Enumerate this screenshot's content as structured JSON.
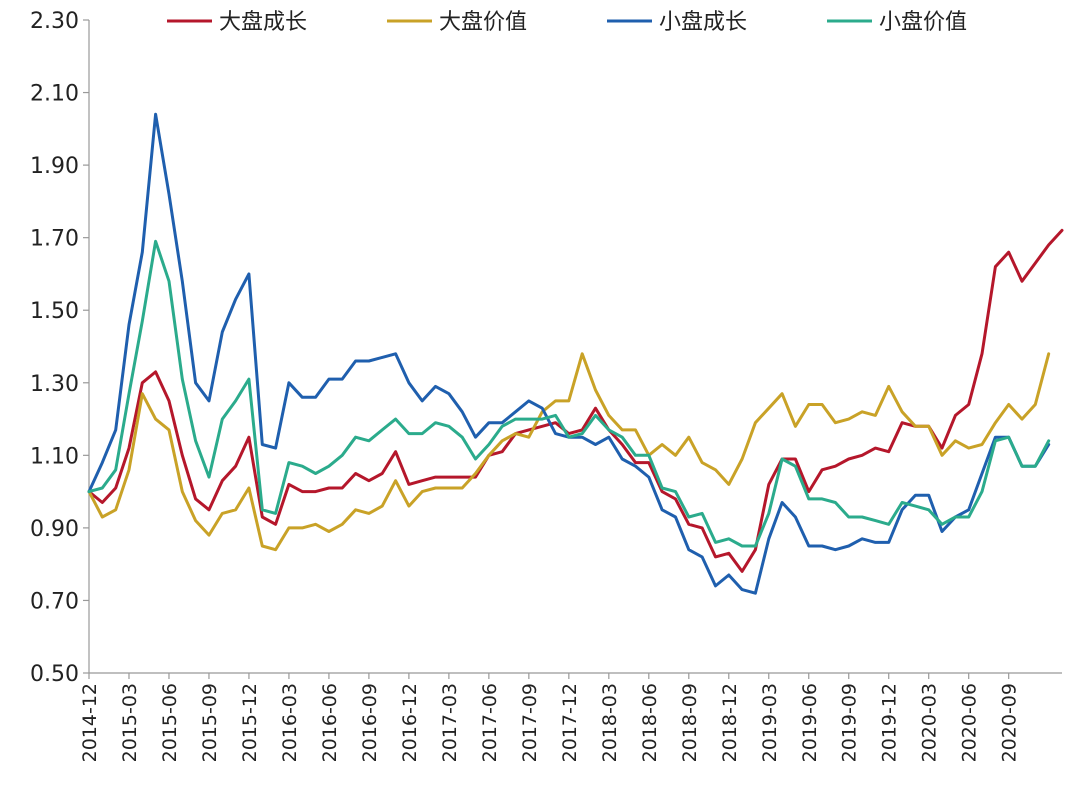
{
  "chart_data": {
    "type": "line",
    "title": "",
    "xlabel": "",
    "ylabel": "",
    "ylim": [
      0.5,
      2.3
    ],
    "y_ticks": [
      "0.50",
      "0.70",
      "0.90",
      "1.10",
      "1.30",
      "1.50",
      "1.70",
      "1.90",
      "2.10",
      "2.30"
    ],
    "x_tick_labels": [
      "2014-12",
      "2015-03",
      "2015-06",
      "2015-09",
      "2015-12",
      "2016-03",
      "2016-06",
      "2016-09",
      "2016-12",
      "2017-03",
      "2017-06",
      "2017-09",
      "2017-12",
      "2018-03",
      "2018-06",
      "2018-09",
      "2018-12",
      "2019-03",
      "2019-06",
      "2019-09",
      "2019-12",
      "2020-03",
      "2020-06",
      "2020-09"
    ],
    "x_start": "2014-12",
    "grid": false,
    "legend_position": "top",
    "series": [
      {
        "name": "大盘成长",
        "color": "#b5172b",
        "values": [
          1.0,
          0.97,
          1.01,
          1.12,
          1.3,
          1.33,
          1.25,
          1.1,
          0.98,
          0.95,
          1.03,
          1.07,
          1.15,
          0.93,
          0.91,
          1.02,
          1.0,
          1.0,
          1.01,
          1.01,
          1.05,
          1.03,
          1.05,
          1.11,
          1.02,
          1.03,
          1.04,
          1.04,
          1.04,
          1.04,
          1.1,
          1.11,
          1.16,
          1.17,
          1.18,
          1.19,
          1.16,
          1.17,
          1.23,
          1.17,
          1.13,
          1.08,
          1.08,
          1.0,
          0.98,
          0.91,
          0.9,
          0.82,
          0.83,
          0.78,
          0.84,
          1.02,
          1.09,
          1.09,
          1.0,
          1.06,
          1.07,
          1.09,
          1.1,
          1.12,
          1.11,
          1.19,
          1.18,
          1.18,
          1.12,
          1.21,
          1.24,
          1.38,
          1.62,
          1.66,
          1.58,
          1.63,
          1.68,
          1.72
        ]
      },
      {
        "name": "大盘价值",
        "color": "#c9a227",
        "values": [
          1.0,
          0.93,
          0.95,
          1.06,
          1.27,
          1.2,
          1.17,
          1.0,
          0.92,
          0.88,
          0.94,
          0.95,
          1.01,
          0.85,
          0.84,
          0.9,
          0.9,
          0.91,
          0.89,
          0.91,
          0.95,
          0.94,
          0.96,
          1.03,
          0.96,
          1.0,
          1.01,
          1.01,
          1.01,
          1.05,
          1.1,
          1.14,
          1.16,
          1.15,
          1.22,
          1.25,
          1.25,
          1.38,
          1.28,
          1.21,
          1.17,
          1.17,
          1.1,
          1.13,
          1.1,
          1.15,
          1.08,
          1.06,
          1.02,
          1.09,
          1.19,
          1.23,
          1.27,
          1.18,
          1.24,
          1.24,
          1.19,
          1.2,
          1.22,
          1.21,
          1.29,
          1.22,
          1.18,
          1.18,
          1.1,
          1.14,
          1.12,
          1.13,
          1.19,
          1.24,
          1.2,
          1.24,
          1.38
        ]
      },
      {
        "name": "小盘成长",
        "color": "#1f5fae",
        "values": [
          1.0,
          1.08,
          1.17,
          1.46,
          1.66,
          2.04,
          1.82,
          1.58,
          1.3,
          1.25,
          1.44,
          1.53,
          1.6,
          1.13,
          1.12,
          1.3,
          1.26,
          1.26,
          1.31,
          1.31,
          1.36,
          1.36,
          1.37,
          1.38,
          1.3,
          1.25,
          1.29,
          1.27,
          1.22,
          1.15,
          1.19,
          1.19,
          1.22,
          1.25,
          1.23,
          1.16,
          1.15,
          1.15,
          1.13,
          1.15,
          1.09,
          1.07,
          1.04,
          0.95,
          0.93,
          0.84,
          0.82,
          0.74,
          0.77,
          0.73,
          0.72,
          0.87,
          0.97,
          0.93,
          0.85,
          0.85,
          0.84,
          0.85,
          0.87,
          0.86,
          0.86,
          0.95,
          0.99,
          0.99,
          0.89,
          0.93,
          0.95,
          1.05,
          1.15,
          1.15,
          1.07,
          1.07,
          1.13
        ]
      },
      {
        "name": "小盘价值",
        "color": "#2bab8c",
        "values": [
          1.0,
          1.01,
          1.06,
          1.27,
          1.47,
          1.69,
          1.58,
          1.31,
          1.14,
          1.04,
          1.2,
          1.25,
          1.31,
          0.95,
          0.94,
          1.08,
          1.07,
          1.05,
          1.07,
          1.1,
          1.15,
          1.14,
          1.17,
          1.2,
          1.16,
          1.16,
          1.19,
          1.18,
          1.15,
          1.09,
          1.13,
          1.18,
          1.2,
          1.2,
          1.2,
          1.21,
          1.15,
          1.16,
          1.21,
          1.17,
          1.15,
          1.1,
          1.1,
          1.01,
          1.0,
          0.93,
          0.94,
          0.86,
          0.87,
          0.85,
          0.85,
          0.94,
          1.09,
          1.07,
          0.98,
          0.98,
          0.97,
          0.93,
          0.93,
          0.92,
          0.91,
          0.97,
          0.96,
          0.95,
          0.91,
          0.93,
          0.93,
          1.0,
          1.14,
          1.15,
          1.07,
          1.07,
          1.14
        ]
      }
    ]
  }
}
